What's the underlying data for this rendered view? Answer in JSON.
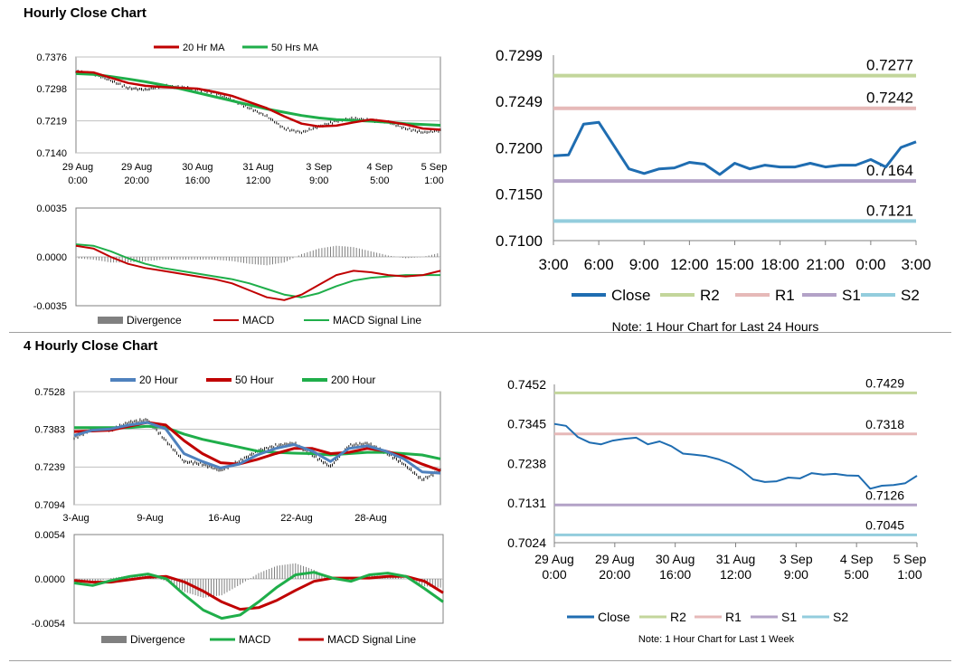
{
  "sections": {
    "hourly_title": "Hourly Close Chart",
    "four_hourly_title": "4 Hourly Close Chart"
  },
  "chart_data": [
    {
      "id": "hourly_price",
      "type": "line",
      "legend": [
        "20 Hr MA",
        "50 Hrs MA"
      ],
      "colors": {
        "ma20": "#c00000",
        "ma50": "#1fae4a",
        "bars": "#000000"
      },
      "y_ticks": [
        "0.7376",
        "0.7298",
        "0.7219",
        "0.7140"
      ],
      "ylim": [
        0.714,
        0.7376
      ],
      "x_ticks": [
        [
          "29 Aug",
          "0:00"
        ],
        [
          "29 Aug",
          "20:00"
        ],
        [
          "30 Aug",
          "16:00"
        ],
        [
          "31 Aug",
          "12:00"
        ],
        [
          "3 Sep",
          "9:00"
        ],
        [
          "4 Sep",
          "5:00"
        ],
        [
          "5 Sep",
          "1:00"
        ]
      ],
      "ma20": [
        0.734,
        0.7338,
        0.7325,
        0.7312,
        0.7305,
        0.7302,
        0.73,
        0.7298,
        0.729,
        0.728,
        0.7265,
        0.725,
        0.723,
        0.7212,
        0.7205,
        0.7207,
        0.7215,
        0.7222,
        0.7217,
        0.721,
        0.72,
        0.7197
      ],
      "ma50": [
        0.7335,
        0.7333,
        0.7328,
        0.7322,
        0.7315,
        0.7307,
        0.7298,
        0.7288,
        0.7278,
        0.7268,
        0.7258,
        0.7248,
        0.724,
        0.7232,
        0.7226,
        0.7222,
        0.722,
        0.7218,
        0.7215,
        0.7212,
        0.721,
        0.7208
      ],
      "close": [
        0.734,
        0.7335,
        0.7318,
        0.73,
        0.7295,
        0.7305,
        0.7302,
        0.7296,
        0.7288,
        0.727,
        0.725,
        0.723,
        0.72,
        0.719,
        0.7205,
        0.7218,
        0.7225,
        0.722,
        0.7215,
        0.72,
        0.719,
        0.7195
      ]
    },
    {
      "id": "hourly_macd",
      "type": "line",
      "legend": [
        "Divergence",
        "MACD",
        "MACD Signal Line"
      ],
      "colors": {
        "divergence": "#808080",
        "macd": "#c00000",
        "signal": "#1fae4a"
      },
      "y_ticks": [
        "0.0035",
        "0.0000",
        "-0.0035"
      ],
      "ylim": [
        -0.0035,
        0.0035
      ],
      "macd": [
        0.0008,
        0.0006,
        0.0,
        -0.0005,
        -0.0008,
        -0.001,
        -0.0012,
        -0.0014,
        -0.0016,
        -0.0019,
        -0.0024,
        -0.0029,
        -0.0031,
        -0.0027,
        -0.002,
        -0.0013,
        -0.001,
        -0.0011,
        -0.0013,
        -0.0014,
        -0.0013,
        -0.001
      ],
      "signal": [
        0.0009,
        0.0008,
        0.0004,
        -0.0001,
        -0.0005,
        -0.0008,
        -0.001,
        -0.0012,
        -0.0014,
        -0.0016,
        -0.0019,
        -0.0023,
        -0.0027,
        -0.0029,
        -0.0026,
        -0.0021,
        -0.0017,
        -0.0015,
        -0.0014,
        -0.0013,
        -0.0013,
        -0.0013
      ],
      "divergence": [
        -0.0001,
        -0.0002,
        -0.0004,
        -0.0004,
        -0.0003,
        -0.0002,
        -0.0002,
        -0.0002,
        -0.0002,
        -0.0003,
        -0.0005,
        -0.0006,
        -0.0004,
        0.0002,
        0.0006,
        0.0008,
        0.0007,
        0.0004,
        0.0001,
        -0.0001,
        0.0,
        0.0003
      ]
    },
    {
      "id": "hourly_close",
      "type": "line",
      "legend": [
        "Close",
        "R2",
        "R1",
        "S1",
        "S2"
      ],
      "colors": {
        "close": "#1f6db1",
        "r2": "#c3d69b",
        "r1": "#e6b9b8",
        "s1": "#b3a2c7",
        "s2": "#93cddd"
      },
      "y_ticks": [
        "0.7299",
        "0.7249",
        "0.7200",
        "0.7150",
        "0.7100"
      ],
      "ylim": [
        0.71,
        0.7299
      ],
      "x_ticks": [
        "3:00",
        "6:00",
        "9:00",
        "12:00",
        "15:00",
        "18:00",
        "21:00",
        "0:00",
        "3:00"
      ],
      "close": [
        0.7191,
        0.7192,
        0.7225,
        0.7227,
        0.7202,
        0.7177,
        0.7172,
        0.7177,
        0.7178,
        0.7184,
        0.7182,
        0.7171,
        0.7183,
        0.7177,
        0.7181,
        0.7179,
        0.7179,
        0.7183,
        0.7179,
        0.7181,
        0.7181,
        0.7187,
        0.7179,
        0.72,
        0.7206
      ],
      "levels": {
        "R2": 0.7277,
        "R1": 0.7242,
        "S1": 0.7164,
        "S2": 0.7121
      },
      "level_labels": {
        "R2": "0.7277",
        "R1": "0.7242",
        "S1": "0.7164",
        "S2": "0.7121"
      },
      "note": "Note: 1 Hour Chart for Last 24 Hours"
    },
    {
      "id": "four_hourly_price",
      "type": "line",
      "legend": [
        "20 Hour",
        "50 Hour",
        "200 Hour"
      ],
      "colors": {
        "h20": "#4f81bd",
        "h50": "#c00000",
        "h200": "#1fae4a",
        "bars": "#000000"
      },
      "y_ticks": [
        "0.7528",
        "0.7383",
        "0.7239",
        "0.7094"
      ],
      "ylim": [
        0.7094,
        0.7528
      ],
      "x_ticks": [
        "3-Aug",
        "9-Aug",
        "16-Aug",
        "22-Aug",
        "28-Aug"
      ],
      "h20": [
        0.736,
        0.738,
        0.7385,
        0.74,
        0.741,
        0.7385,
        0.729,
        0.726,
        0.7235,
        0.725,
        0.7285,
        0.731,
        0.7325,
        0.73,
        0.726,
        0.731,
        0.732,
        0.73,
        0.727,
        0.722,
        0.7215
      ],
      "h50": [
        0.7375,
        0.7377,
        0.738,
        0.7395,
        0.741,
        0.74,
        0.734,
        0.729,
        0.7255,
        0.725,
        0.7268,
        0.729,
        0.731,
        0.731,
        0.729,
        0.7295,
        0.731,
        0.73,
        0.728,
        0.725,
        0.7225
      ],
      "h200": [
        0.739,
        0.739,
        0.739,
        0.739,
        0.7395,
        0.739,
        0.7365,
        0.7345,
        0.733,
        0.7315,
        0.73,
        0.7295,
        0.7292,
        0.729,
        0.7285,
        0.729,
        0.7295,
        0.7295,
        0.729,
        0.7285,
        0.727
      ],
      "close": [
        0.735,
        0.7385,
        0.738,
        0.741,
        0.742,
        0.734,
        0.726,
        0.725,
        0.7225,
        0.726,
        0.73,
        0.732,
        0.733,
        0.7285,
        0.724,
        0.732,
        0.733,
        0.7295,
        0.725,
        0.719,
        0.7225
      ]
    },
    {
      "id": "four_hourly_macd",
      "type": "line",
      "legend": [
        "Divergence",
        "MACD",
        "MACD Signal Line"
      ],
      "colors": {
        "divergence": "#808080",
        "macd": "#1fae4a",
        "signal": "#c00000"
      },
      "y_ticks": [
        "0.0054",
        "0.0000",
        "-0.0054"
      ],
      "ylim": [
        -0.0054,
        0.0054
      ],
      "macd": [
        -0.0005,
        -0.0008,
        -0.0002,
        0.0003,
        0.0006,
        0.0,
        -0.002,
        -0.0038,
        -0.0048,
        -0.0044,
        -0.0028,
        -0.001,
        0.0005,
        0.0008,
        0.0001,
        -0.0003,
        0.0005,
        0.0007,
        0.0003,
        -0.0012,
        -0.0028
      ],
      "signal": [
        -0.0002,
        -0.0004,
        -0.0004,
        -0.0001,
        0.0002,
        0.0003,
        -0.0004,
        -0.0015,
        -0.0028,
        -0.0037,
        -0.0035,
        -0.0026,
        -0.0014,
        -0.0003,
        0.0001,
        0.0001,
        0.0001,
        0.0003,
        0.0003,
        -0.0003,
        -0.0017
      ],
      "divergence": [
        -0.0003,
        -0.0004,
        0.0001,
        0.0004,
        0.0004,
        -0.0003,
        -0.0016,
        -0.0023,
        -0.002,
        -0.0007,
        0.0007,
        0.0016,
        0.0019,
        0.0011,
        0.0,
        -0.0004,
        0.0004,
        0.0004,
        0.0,
        -0.0009,
        -0.0011
      ]
    },
    {
      "id": "four_hourly_close",
      "type": "line",
      "legend": [
        "Close",
        "R2",
        "R1",
        "S1",
        "S2"
      ],
      "colors": {
        "close": "#1f6db1",
        "r2": "#c3d69b",
        "r1": "#e6b9b8",
        "s1": "#b3a2c7",
        "s2": "#93cddd"
      },
      "y_ticks": [
        "0.7452",
        "0.7345",
        "0.7238",
        "0.7131",
        "0.7024"
      ],
      "ylim": [
        0.7024,
        0.7452
      ],
      "x_ticks": [
        [
          "29 Aug",
          "0:00"
        ],
        [
          "29 Aug",
          "20:00"
        ],
        [
          "30 Aug",
          "16:00"
        ],
        [
          "31 Aug",
          "12:00"
        ],
        [
          "3 Sep",
          "9:00"
        ],
        [
          "4 Sep",
          "5:00"
        ],
        [
          "5 Sep",
          "1:00"
        ]
      ],
      "close": [
        0.7345,
        0.734,
        0.731,
        0.7295,
        0.729,
        0.73,
        0.7305,
        0.7308,
        0.729,
        0.7298,
        0.7285,
        0.7265,
        0.7262,
        0.7258,
        0.725,
        0.7238,
        0.722,
        0.7195,
        0.7188,
        0.719,
        0.72,
        0.7198,
        0.7212,
        0.7208,
        0.721,
        0.7206,
        0.7205,
        0.717,
        0.7178,
        0.718,
        0.7185,
        0.7205
      ],
      "levels": {
        "R2": 0.7429,
        "R1": 0.7318,
        "S1": 0.7126,
        "S2": 0.7045
      },
      "level_labels": {
        "R2": "0.7429",
        "R1": "0.7318",
        "S1": "0.7126",
        "S2": "0.7045"
      },
      "note": "Note: 1 Hour Chart for Last 1 Week"
    }
  ]
}
